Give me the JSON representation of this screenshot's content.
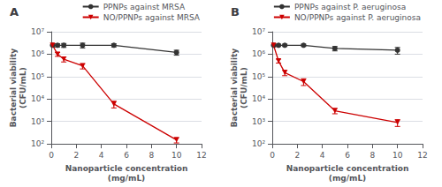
{
  "chart_data": [
    {
      "type": "line",
      "title": "A",
      "x": [
        0.1,
        0.5,
        1.0,
        2.5,
        5.0,
        10.0
      ],
      "series": [
        {
          "name": "PPNPs against MRSA",
          "color": "#333333",
          "marker": "circle",
          "values": [
            2500000.0,
            2500000.0,
            2500000.0,
            2500000.0,
            2500000.0,
            1200000.0
          ],
          "errors": [
            400000.0,
            400000.0,
            500000.0,
            600000.0,
            400000.0,
            300000.0
          ]
        },
        {
          "name": "NO/PPNPs against MRSA",
          "color": "#cc0000",
          "marker": "triangle-down",
          "values": [
            2500000.0,
            1000000.0,
            600000.0,
            300000.0,
            6000.0,
            150.0
          ],
          "errors": [
            400000.0,
            200000.0,
            150000.0,
            80000.0,
            2000.0,
            40.0
          ]
        }
      ],
      "xlabel": "Nanoparticle concentration\n(mg/mL)",
      "ylabel": "Bacterial viability\n(CFU/mL)",
      "xlim": [
        0,
        12
      ],
      "xticks": [
        0,
        2,
        4,
        6,
        8,
        10,
        12
      ],
      "ylim": [
        100,
        10000000
      ],
      "yticks": [
        {
          "value": 100,
          "label": "10²"
        },
        {
          "value": 1000,
          "label": "10³"
        },
        {
          "value": 10000,
          "label": "10⁴"
        },
        {
          "value": 100000,
          "label": "10⁵"
        },
        {
          "value": 1000000,
          "label": "10⁶"
        },
        {
          "value": 10000000,
          "label": "10⁷"
        }
      ],
      "log": "y",
      "grid": true,
      "legend": "upper right"
    },
    {
      "type": "line",
      "title": "B",
      "x": [
        0.1,
        0.5,
        1.0,
        2.5,
        5.0,
        10.0
      ],
      "series": [
        {
          "name": "PPNPs against P. aeruginosa",
          "color": "#333333",
          "marker": "circle",
          "values": [
            2500000.0,
            2500000.0,
            2500000.0,
            2500000.0,
            1800000.0,
            1500000.0
          ],
          "errors": [
            300000.0,
            300000.0,
            300000.0,
            300000.0,
            400000.0,
            500000.0
          ]
        },
        {
          "name": "NO/PPNPs against P. aeruginosa",
          "color": "#cc0000",
          "marker": "triangle-down",
          "values": [
            2500000.0,
            500000.0,
            150000.0,
            60000.0,
            3000.0,
            900.0
          ],
          "errors": [
            400000.0,
            100000.0,
            40000.0,
            20000.0,
            800.0,
            300.0
          ]
        }
      ],
      "xlabel": "Nanoparticle concentration\n(mg/mL)",
      "ylabel": "Bacterial viability\n(CFU/mL)",
      "xlim": [
        0,
        12
      ],
      "xticks": [
        0,
        2,
        4,
        6,
        8,
        10,
        12
      ],
      "ylim": [
        100,
        10000000
      ],
      "yticks": [
        {
          "value": 100,
          "label": "10²"
        },
        {
          "value": 1000,
          "label": "10³"
        },
        {
          "value": 10000,
          "label": "10⁴"
        },
        {
          "value": 100000,
          "label": "10⁵"
        },
        {
          "value": 1000000,
          "label": "10⁶"
        },
        {
          "value": 10000000,
          "label": "10⁷"
        }
      ],
      "log": "y",
      "grid": true,
      "legend": "upper right"
    }
  ]
}
